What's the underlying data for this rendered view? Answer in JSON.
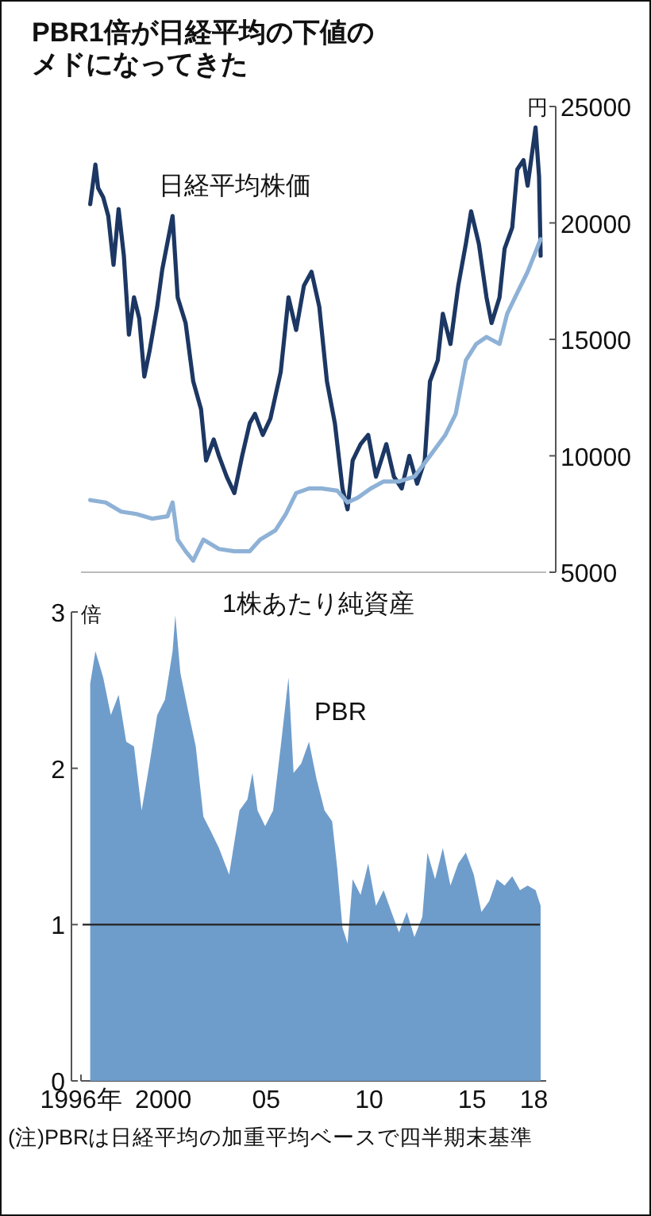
{
  "chart_data": [
    {
      "type": "line",
      "title": "PBR1倍が日経平均の下値のメドになってきた",
      "ylabel": "円",
      "xlim": [
        1996,
        2018.6
      ],
      "ylim": [
        5000,
        25000
      ],
      "yticks": [
        5000,
        10000,
        15000,
        20000,
        25000
      ],
      "tick_labels": "y",
      "series": [
        {
          "name": "日経平均株価",
          "color": "#1c3763",
          "x": [
            1996.45,
            1996.7,
            1996.83,
            1997.08,
            1997.33,
            1997.58,
            1997.83,
            1998.08,
            1998.33,
            1998.58,
            1998.83,
            1999.08,
            1999.33,
            1999.7,
            1999.95,
            2000.45,
            2000.7,
            2001.08,
            2001.45,
            2001.83,
            2002.08,
            2002.45,
            2002.7,
            2003.08,
            2003.45,
            2003.83,
            2004.2,
            2004.45,
            2004.83,
            2005.2,
            2005.7,
            2006.08,
            2006.45,
            2006.83,
            2007.2,
            2007.58,
            2007.95,
            2008.33,
            2008.7,
            2008.95,
            2009.2,
            2009.58,
            2009.95,
            2010.33,
            2010.83,
            2011.2,
            2011.58,
            2011.95,
            2012.33,
            2012.7,
            2012.95,
            2013.33,
            2013.58,
            2013.95,
            2014.33,
            2014.7,
            2014.95,
            2015.33,
            2015.7,
            2015.95,
            2016.33,
            2016.58,
            2016.95,
            2017.2,
            2017.5,
            2017.7,
            2018.08,
            2018.25,
            2018.33
          ],
          "values": [
            20800,
            22500,
            21500,
            21100,
            20300,
            18200,
            20600,
            18600,
            15200,
            16800,
            15900,
            13400,
            14500,
            16400,
            18000,
            20300,
            16800,
            15700,
            13200,
            12000,
            9800,
            10700,
            10000,
            9100,
            8400,
            10000,
            11400,
            11800,
            10900,
            11600,
            13600,
            16800,
            15400,
            17300,
            17900,
            16400,
            13200,
            11400,
            8600,
            7700,
            9800,
            10500,
            10900,
            9100,
            10500,
            9100,
            8600,
            10000,
            8800,
            9800,
            13200,
            14100,
            16100,
            14800,
            17300,
            19100,
            20500,
            19100,
            16800,
            15700,
            16800,
            18900,
            19800,
            22300,
            22700,
            21600,
            24100,
            22000,
            18600
          ]
        },
        {
          "name": "1株あたり純資産",
          "color": "#8eb1d6",
          "x": [
            1996.45,
            1997.2,
            1997.95,
            1998.7,
            1999.45,
            2000.2,
            2000.45,
            2000.7,
            2001.08,
            2001.45,
            2001.95,
            2002.7,
            2003.45,
            2004.2,
            2004.7,
            2005.45,
            2005.95,
            2006.45,
            2007.08,
            2007.7,
            2008.45,
            2008.95,
            2009.45,
            2010.08,
            2010.7,
            2011.45,
            2012.2,
            2012.95,
            2013.7,
            2014.2,
            2014.7,
            2015.2,
            2015.7,
            2016.33,
            2016.7,
            2017.2,
            2017.7,
            2018.33
          ],
          "values": [
            8100,
            8000,
            7600,
            7500,
            7300,
            7400,
            8000,
            6400,
            5900,
            5500,
            6400,
            6000,
            5900,
            5900,
            6400,
            6800,
            7500,
            8400,
            8600,
            8600,
            8500,
            8000,
            8200,
            8600,
            8900,
            8900,
            9100,
            10000,
            10900,
            11800,
            14100,
            14800,
            15100,
            14800,
            16100,
            17000,
            17900,
            19300
          ]
        }
      ]
    },
    {
      "type": "area",
      "xlabel": null,
      "ylabel": "倍",
      "xlim": [
        1996,
        2018.6
      ],
      "ylim": [
        0,
        3
      ],
      "yticks": [
        0,
        1,
        2,
        3
      ],
      "xticks": [
        {
          "value": 1996,
          "label": "1996年"
        },
        {
          "value": 1997,
          "label": null
        },
        {
          "value": 1998,
          "label": null
        },
        {
          "value": 1999,
          "label": null
        },
        {
          "value": 2000,
          "label": "2000"
        },
        {
          "value": 2001,
          "label": null
        },
        {
          "value": 2002,
          "label": null
        },
        {
          "value": 2003,
          "label": null
        },
        {
          "value": 2004,
          "label": null
        },
        {
          "value": 2005,
          "label": "05"
        },
        {
          "value": 2006,
          "label": null
        },
        {
          "value": 2007,
          "label": null
        },
        {
          "value": 2008,
          "label": null
        },
        {
          "value": 2009,
          "label": null
        },
        {
          "value": 2010,
          "label": "10"
        },
        {
          "value": 2011,
          "label": null
        },
        {
          "value": 2012,
          "label": null
        },
        {
          "value": 2013,
          "label": null
        },
        {
          "value": 2014,
          "label": null
        },
        {
          "value": 2015,
          "label": "15"
        },
        {
          "value": 2016,
          "label": null
        },
        {
          "value": 2017,
          "label": null
        },
        {
          "value": 2018,
          "label": "18"
        }
      ],
      "ref_lines": [
        {
          "axis": "y",
          "value": 1,
          "color": "#222222"
        }
      ],
      "annotations": [
        "(注)PBRは日経平均の加重平均ベースで四半期末基準"
      ],
      "series": [
        {
          "name": "PBR",
          "color": "#6f9dcb",
          "x": [
            1996.45,
            1996.7,
            1997.08,
            1997.45,
            1997.83,
            1998.2,
            1998.58,
            1998.95,
            1999.33,
            1999.7,
            2000.08,
            2000.45,
            2000.58,
            2000.83,
            2001.2,
            2001.58,
            2001.95,
            2002.33,
            2002.7,
            2003.2,
            2003.7,
            2004.08,
            2004.33,
            2004.58,
            2004.95,
            2005.33,
            2005.7,
            2006.08,
            2006.33,
            2006.7,
            2007.08,
            2007.45,
            2007.83,
            2008.2,
            2008.45,
            2008.7,
            2008.95,
            2009.2,
            2009.58,
            2009.95,
            2010.33,
            2010.7,
            2011.08,
            2011.45,
            2011.83,
            2012.2,
            2012.58,
            2012.83,
            2013.2,
            2013.58,
            2013.95,
            2014.33,
            2014.7,
            2015.08,
            2015.45,
            2015.83,
            2016.2,
            2016.58,
            2016.95,
            2017.33,
            2017.7,
            2018.08,
            2018.33
          ],
          "values": [
            2.54,
            2.75,
            2.58,
            2.34,
            2.47,
            2.17,
            2.14,
            1.73,
            2.03,
            2.34,
            2.44,
            2.75,
            2.98,
            2.61,
            2.37,
            2.14,
            1.69,
            1.59,
            1.49,
            1.32,
            1.73,
            1.8,
            1.97,
            1.73,
            1.63,
            1.73,
            2.14,
            2.58,
            1.97,
            2.03,
            2.17,
            1.93,
            1.73,
            1.66,
            1.36,
            0.98,
            0.88,
            1.29,
            1.19,
            1.39,
            1.12,
            1.22,
            1.08,
            0.95,
            1.08,
            0.92,
            1.05,
            1.46,
            1.29,
            1.49,
            1.25,
            1.39,
            1.46,
            1.32,
            1.08,
            1.15,
            1.29,
            1.25,
            1.31,
            1.22,
            1.25,
            1.22,
            1.12
          ]
        }
      ]
    }
  ]
}
